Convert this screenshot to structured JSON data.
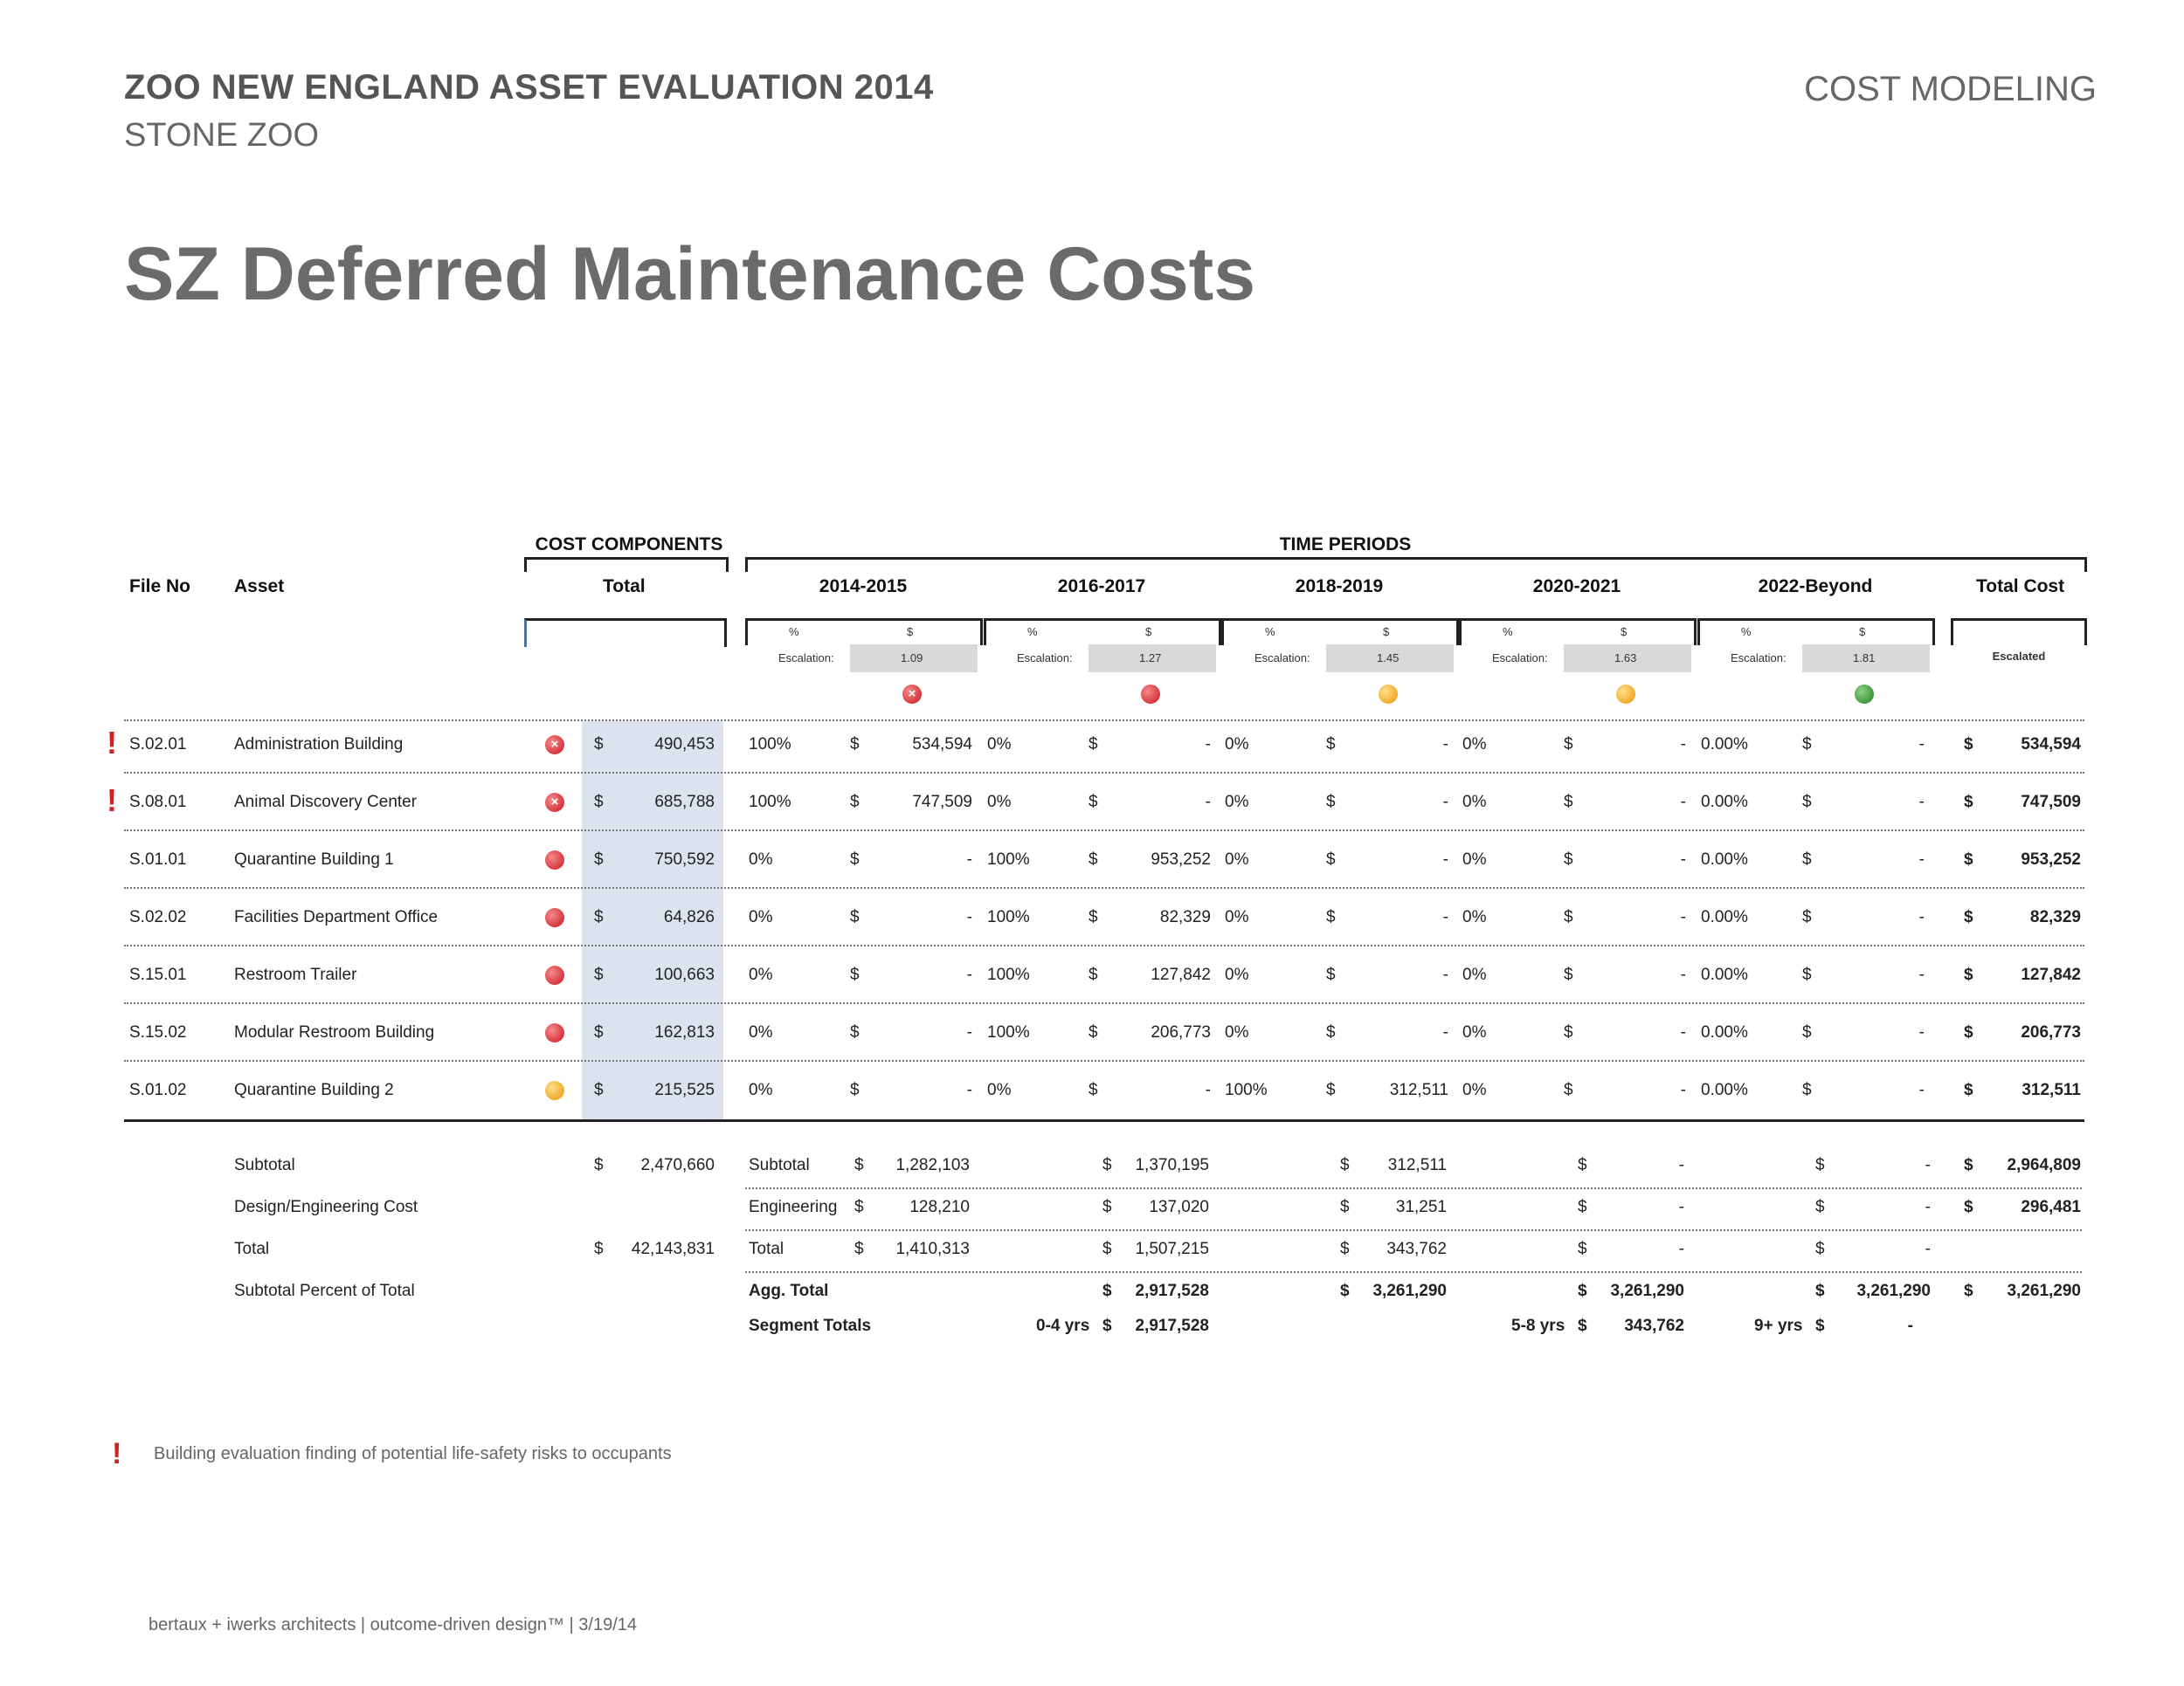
{
  "header": {
    "title": "ZOO NEW ENGLAND ASSET EVALUATION 2014",
    "subtitle": "STONE ZOO",
    "section": "COST MODELING"
  },
  "page_title": "SZ Deferred Maintenance Costs",
  "groups": {
    "cost_components": "COST COMPONENTS",
    "time_periods": "TIME PERIODS"
  },
  "columns": {
    "file_no": "File No",
    "asset": "Asset",
    "total": "Total",
    "total_cost": "Total Cost",
    "escalated": "Escalated"
  },
  "periods": [
    {
      "label": "2014-2015",
      "pct": "%",
      "dollar": "$",
      "escalation_label": "Escalation:",
      "factor": "1.09",
      "status": "red-x"
    },
    {
      "label": "2016-2017",
      "pct": "%",
      "dollar": "$",
      "escalation_label": "Escalation:",
      "factor": "1.27",
      "status": "red"
    },
    {
      "label": "2018-2019",
      "pct": "%",
      "dollar": "$",
      "escalation_label": "Escalation:",
      "factor": "1.45",
      "status": "yellow"
    },
    {
      "label": "2020-2021",
      "pct": "%",
      "dollar": "$",
      "escalation_label": "Escalation:",
      "factor": "1.63",
      "status": "yellow"
    },
    {
      "label": "2022-Beyond",
      "pct": "%",
      "dollar": "$",
      "escalation_label": "Escalation:",
      "factor": "1.81",
      "status": "green"
    }
  ],
  "rows": [
    {
      "alert": true,
      "file_no": "S.02.01",
      "asset": "Administration Building",
      "status": "red-x",
      "dollar": "$",
      "total": "490,453",
      "p": [
        [
          "100%",
          "$",
          "534,594"
        ],
        [
          "0%",
          "$",
          "-"
        ],
        [
          "0%",
          "$",
          "-"
        ],
        [
          "0%",
          "$",
          "-"
        ],
        [
          "0.00%",
          "$",
          "-"
        ]
      ],
      "total_cost": "534,594"
    },
    {
      "alert": true,
      "file_no": "S.08.01",
      "asset": "Animal Discovery Center",
      "status": "red-x",
      "dollar": "$",
      "total": "685,788",
      "p": [
        [
          "100%",
          "$",
          "747,509"
        ],
        [
          "0%",
          "$",
          "-"
        ],
        [
          "0%",
          "$",
          "-"
        ],
        [
          "0%",
          "$",
          "-"
        ],
        [
          "0.00%",
          "$",
          "-"
        ]
      ],
      "total_cost": "747,509"
    },
    {
      "alert": false,
      "file_no": "S.01.01",
      "asset": "Quarantine Building 1",
      "status": "red",
      "dollar": "$",
      "total": "750,592",
      "p": [
        [
          "0%",
          "$",
          "-"
        ],
        [
          "100%",
          "$",
          "953,252"
        ],
        [
          "0%",
          "$",
          "-"
        ],
        [
          "0%",
          "$",
          "-"
        ],
        [
          "0.00%",
          "$",
          "-"
        ]
      ],
      "total_cost": "953,252"
    },
    {
      "alert": false,
      "file_no": "S.02.02",
      "asset": "Facilities Department Office",
      "status": "red",
      "dollar": "$",
      "total": "64,826",
      "p": [
        [
          "0%",
          "$",
          "-"
        ],
        [
          "100%",
          "$",
          "82,329"
        ],
        [
          "0%",
          "$",
          "-"
        ],
        [
          "0%",
          "$",
          "-"
        ],
        [
          "0.00%",
          "$",
          "-"
        ]
      ],
      "total_cost": "82,329"
    },
    {
      "alert": false,
      "file_no": "S.15.01",
      "asset": "Restroom Trailer",
      "status": "red",
      "dollar": "$",
      "total": "100,663",
      "p": [
        [
          "0%",
          "$",
          "-"
        ],
        [
          "100%",
          "$",
          "127,842"
        ],
        [
          "0%",
          "$",
          "-"
        ],
        [
          "0%",
          "$",
          "-"
        ],
        [
          "0.00%",
          "$",
          "-"
        ]
      ],
      "total_cost": "127,842"
    },
    {
      "alert": false,
      "file_no": "S.15.02",
      "asset": "Modular Restroom Building",
      "status": "red",
      "dollar": "$",
      "total": "162,813",
      "p": [
        [
          "0%",
          "$",
          "-"
        ],
        [
          "100%",
          "$",
          "206,773"
        ],
        [
          "0%",
          "$",
          "-"
        ],
        [
          "0%",
          "$",
          "-"
        ],
        [
          "0.00%",
          "$",
          "-"
        ]
      ],
      "total_cost": "206,773"
    },
    {
      "alert": false,
      "file_no": "S.01.02",
      "asset": "Quarantine Building 2",
      "status": "yellow",
      "dollar": "$",
      "total": "215,525",
      "p": [
        [
          "0%",
          "$",
          "-"
        ],
        [
          "0%",
          "$",
          "-"
        ],
        [
          "100%",
          "$",
          "312,511"
        ],
        [
          "0%",
          "$",
          "-"
        ],
        [
          "0.00%",
          "$",
          "-"
        ]
      ],
      "total_cost": "312,511"
    }
  ],
  "summary": {
    "labels": [
      "Subtotal",
      "Design/Engineering Cost",
      "Total",
      "Subtotal Percent of Total"
    ],
    "total_col": {
      "subtotal": "2,470,660",
      "total": "42,143,831",
      "dollar": "$"
    },
    "p1_labels": [
      "Subtotal",
      "Engineering",
      "Total",
      "Agg. Total",
      "Segment Totals"
    ],
    "p1_vals": [
      "1,282,103",
      "128,210",
      "1,410,313"
    ],
    "p2_vals": [
      "1,370,195",
      "137,020",
      "1,507,215",
      "2,917,528"
    ],
    "p2_segment": {
      "range": "0-4 yrs",
      "value": "2,917,528"
    },
    "p3_vals": [
      "312,511",
      "31,251",
      "343,762",
      "3,261,290"
    ],
    "p4_vals": [
      "-",
      "-",
      "-",
      "3,261,290"
    ],
    "p4_segment": {
      "range": "5-8 yrs",
      "value": "343,762"
    },
    "p5_vals": [
      "-",
      "-",
      "-",
      "3,261,290"
    ],
    "p5_segment": {
      "range": "9+ yrs",
      "value": "-"
    },
    "tc_vals": [
      "2,964,809",
      "296,481",
      "3,261,290"
    ],
    "dollar": "$"
  },
  "footnote": "Building evaluation finding of potential life-safety risks to occupants",
  "footer": "bertaux + iwerks architects | outcome-driven design™ | 3/19/14"
}
